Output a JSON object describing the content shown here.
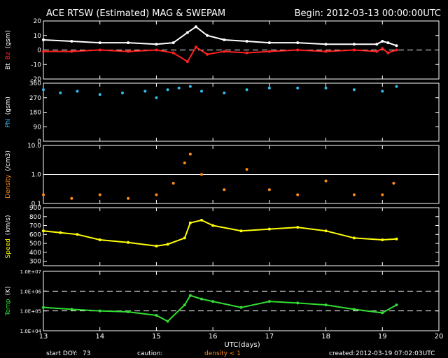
{
  "header": {
    "title": "ACE RTSW (Estimated) MAG & SWEPAM",
    "begin": "Begin: 2012-03-13 00:00:00UTC"
  },
  "footer": {
    "start_doy_label": "start DOY:",
    "start_doy_value": "73",
    "caution_label": "caution:",
    "caution_value": "density < 1",
    "created_label": "created:",
    "created_value": "2012-03-19 07:02:03UTC"
  },
  "colors": {
    "background": "#000000",
    "axes": "#ffffff",
    "bt": "#ffffff",
    "bz": "#ff2020",
    "phi": "#33bbee",
    "density": "#ff8c1a",
    "speed": "#ffff00",
    "temp": "#33dd33"
  },
  "chart_data": [
    {
      "type": "line",
      "panel": "bt-bz",
      "ylabel_parts": [
        "Bt",
        "Bz",
        "(gsm)"
      ],
      "ylim": [
        -20,
        20
      ],
      "yticks": [
        -20,
        -10,
        0,
        10,
        20
      ],
      "reference_lines": [
        0
      ],
      "series": [
        {
          "name": "Bt",
          "x": [
            13.0,
            13.5,
            14.0,
            14.5,
            15.0,
            15.3,
            15.55,
            15.7,
            15.9,
            16.2,
            16.6,
            17.0,
            17.5,
            18.0,
            18.5,
            18.9,
            19.0,
            19.1,
            19.25
          ],
          "values": [
            7,
            6,
            5,
            5,
            4,
            5,
            12,
            16,
            10,
            7,
            6,
            5,
            5,
            4,
            4,
            4,
            6,
            5,
            3
          ]
        },
        {
          "name": "Bz",
          "x": [
            13.0,
            13.5,
            14.0,
            14.5,
            15.0,
            15.3,
            15.55,
            15.7,
            15.9,
            16.2,
            16.6,
            17.0,
            17.5,
            18.0,
            18.5,
            18.9,
            19.0,
            19.1,
            19.25
          ],
          "values": [
            -1,
            -1,
            0,
            -1,
            0,
            -2,
            -8,
            2,
            -3,
            -1,
            -2,
            -1,
            0,
            -1,
            0,
            -1,
            1,
            -2,
            0
          ]
        }
      ]
    },
    {
      "type": "scatter",
      "panel": "phi",
      "ylabel": "Phi (gsm)",
      "ylim": [
        0,
        360
      ],
      "yticks": [
        0,
        90,
        180,
        270,
        360
      ],
      "series": [
        {
          "x": [
            13.0,
            13.3,
            13.6,
            14.0,
            14.4,
            14.8,
            15.0,
            15.2,
            15.4,
            15.6,
            15.8,
            16.2,
            16.6,
            17.0,
            17.5,
            18.0,
            18.5,
            19.0,
            19.25
          ],
          "values": [
            320,
            300,
            310,
            290,
            300,
            310,
            270,
            320,
            330,
            340,
            310,
            300,
            320,
            330,
            330,
            330,
            320,
            310,
            340
          ]
        }
      ]
    },
    {
      "type": "scatter",
      "panel": "density",
      "ylabel": "Density (/cm3)",
      "yscale": "log",
      "ylim": [
        0.1,
        10.0
      ],
      "yticks": [
        0.1,
        1.0,
        10.0
      ],
      "ytick_labels": [
        "0.1",
        "1.0",
        "10.0"
      ],
      "reference_lines": [
        1.0
      ],
      "series": [
        {
          "x": [
            13.0,
            13.5,
            14.0,
            14.5,
            15.0,
            15.3,
            15.5,
            15.6,
            15.8,
            16.2,
            16.6,
            17.0,
            17.5,
            18.0,
            18.5,
            19.0,
            19.2
          ],
          "values": [
            0.2,
            0.15,
            0.2,
            0.15,
            0.2,
            0.5,
            2.5,
            5.0,
            1.0,
            0.3,
            1.5,
            0.3,
            0.2,
            0.6,
            0.2,
            0.2,
            0.5
          ]
        }
      ]
    },
    {
      "type": "line",
      "panel": "speed",
      "ylabel": "Speed (km/s)",
      "ylim": [
        250,
        900
      ],
      "yticks": [
        300,
        400,
        500,
        600,
        700,
        800,
        900
      ],
      "series": [
        {
          "x": [
            13.0,
            13.3,
            13.6,
            14.0,
            14.5,
            15.0,
            15.2,
            15.5,
            15.6,
            15.8,
            16.0,
            16.5,
            17.0,
            17.5,
            18.0,
            18.5,
            19.0,
            19.25
          ],
          "values": [
            640,
            620,
            600,
            540,
            510,
            470,
            490,
            560,
            730,
            760,
            700,
            640,
            660,
            680,
            640,
            560,
            540,
            550
          ]
        }
      ]
    },
    {
      "type": "line",
      "panel": "temp",
      "ylabel": "Temp (K)",
      "yscale": "log",
      "ylim": [
        10000,
        10000000
      ],
      "yticks": [
        10000,
        100000,
        1000000,
        10000000
      ],
      "ytick_labels": [
        "1.0E+04",
        "1.0E+05",
        "1.0E+06",
        "1.0E+07"
      ],
      "reference_lines": [
        1000000,
        100000
      ],
      "series": [
        {
          "x": [
            13.0,
            13.5,
            14.0,
            14.5,
            15.0,
            15.2,
            15.5,
            15.6,
            15.8,
            16.0,
            16.5,
            17.0,
            17.5,
            18.0,
            18.5,
            19.0,
            19.25
          ],
          "values": [
            150000,
            120000,
            100000,
            90000,
            60000,
            30000,
            200000,
            600000,
            400000,
            300000,
            150000,
            300000,
            250000,
            200000,
            120000,
            80000,
            200000
          ]
        }
      ]
    }
  ],
  "x_axis": {
    "label": "UTC(days)",
    "range": [
      13,
      20
    ],
    "ticks": [
      "13",
      "14",
      "15",
      "16",
      "17",
      "18",
      "19",
      "20"
    ]
  }
}
